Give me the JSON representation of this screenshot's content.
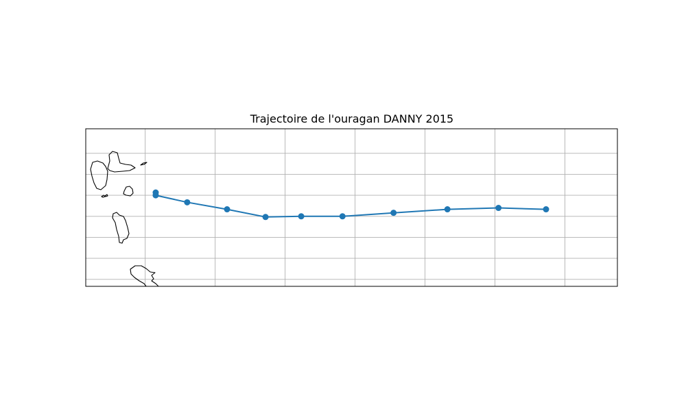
{
  "title": "Trajectoire de l'ouragan DANNY 2015",
  "colors": {
    "track": "#1f77b4",
    "grid": "#b0b0b0",
    "coast": "#000000",
    "background": "#ffffff"
  },
  "chart_data": {
    "type": "line",
    "title": "Trajectoire de l'ouragan DANNY 2015",
    "xlabel": "",
    "ylabel": "",
    "grid": true,
    "extent": {
      "lon": [
        -62.1,
        -54.5
      ],
      "lat": [
        14.4,
        16.65
      ]
    },
    "gridlines": {
      "lon": [
        -61.25,
        -60.25,
        -59.25,
        -58.25,
        -57.25,
        -56.25,
        -55.25
      ],
      "lat": [
        14.5,
        14.8,
        15.1,
        15.4,
        15.7,
        16.0,
        16.3
      ]
    },
    "series": [
      {
        "name": "DANNY 2015",
        "lon": [
          -55.52,
          -56.2,
          -56.93,
          -57.7,
          -58.43,
          -59.02,
          -59.53,
          -60.08,
          -60.65,
          -61.1,
          -61.1
        ],
        "lat": [
          15.5,
          15.52,
          15.5,
          15.45,
          15.4,
          15.4,
          15.39,
          15.5,
          15.6,
          15.7,
          15.74
        ]
      }
    ]
  }
}
